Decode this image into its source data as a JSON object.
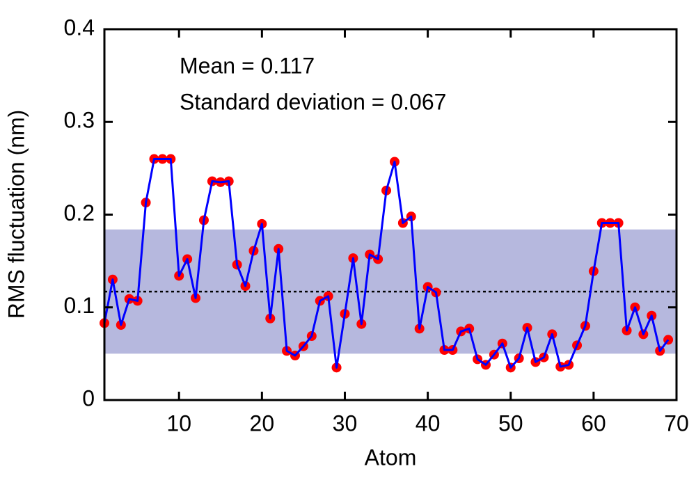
{
  "chart_data": {
    "type": "line",
    "xlabel": "Atom",
    "ylabel": "RMS fluctuation (nm)",
    "annotations": [
      "Mean = 0.117",
      "Standard deviation = 0.067"
    ],
    "x": [
      1,
      2,
      3,
      4,
      5,
      6,
      7,
      8,
      9,
      10,
      11,
      12,
      13,
      14,
      15,
      16,
      17,
      18,
      19,
      20,
      21,
      22,
      23,
      24,
      25,
      26,
      27,
      28,
      29,
      30,
      31,
      32,
      33,
      34,
      35,
      36,
      37,
      38,
      39,
      40,
      41,
      42,
      43,
      44,
      45,
      46,
      47,
      48,
      49,
      50,
      51,
      52,
      53,
      54,
      55,
      56,
      57,
      58,
      59,
      60,
      61,
      62,
      63,
      64,
      65,
      66,
      67,
      68,
      69
    ],
    "series": [
      {
        "color": "#0000ff",
        "marker_color": "#ff0000",
        "values": [
          0.083,
          0.13,
          0.081,
          0.109,
          0.107,
          0.213,
          0.26,
          0.26,
          0.26,
          0.134,
          0.152,
          0.11,
          0.194,
          0.236,
          0.235,
          0.236,
          0.146,
          0.123,
          0.161,
          0.19,
          0.088,
          0.163,
          0.053,
          0.048,
          0.058,
          0.069,
          0.107,
          0.112,
          0.035,
          0.093,
          0.153,
          0.082,
          0.157,
          0.152,
          0.226,
          0.257,
          0.191,
          0.198,
          0.077,
          0.122,
          0.116,
          0.054,
          0.054,
          0.074,
          0.077,
          0.044,
          0.038,
          0.049,
          0.061,
          0.035,
          0.045,
          0.078,
          0.041,
          0.046,
          0.071,
          0.036,
          0.038,
          0.059,
          0.08,
          0.139,
          0.191,
          0.191,
          0.191,
          0.075,
          0.1,
          0.071,
          0.091,
          0.053,
          0.065
        ]
      }
    ],
    "reference_line": 0.117,
    "band": [
      0.05,
      0.184
    ],
    "band_color": "#b6b8de",
    "xlim": [
      1,
      70
    ],
    "xticks": [
      10,
      20,
      30,
      40,
      50,
      60,
      70
    ],
    "ylim": [
      0,
      0.4
    ],
    "yticks": [
      0,
      0.1,
      0.2,
      0.3,
      0.4
    ]
  }
}
